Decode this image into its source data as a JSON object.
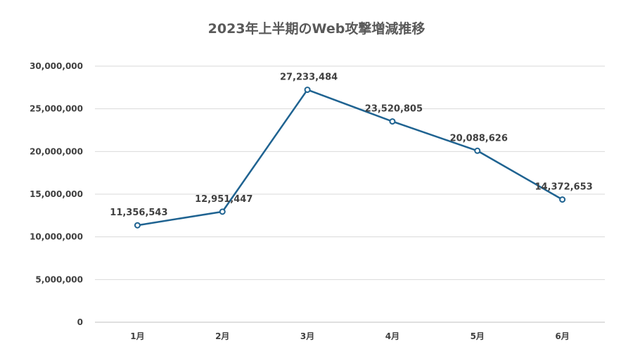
{
  "chart_data": {
    "type": "line",
    "title": "2023年上半期のWeb攻撃増減推移",
    "categories": [
      "1月",
      "2月",
      "3月",
      "4月",
      "5月",
      "6月"
    ],
    "series": [
      {
        "values": [
          11356543,
          12951447,
          27233484,
          23520805,
          20088626,
          14372653
        ],
        "labels": [
          "11,356,543",
          "12,951,447",
          "27,233,484",
          "23,520,805",
          "20,088,626",
          "14,372,653"
        ],
        "color": "#1f6391"
      }
    ],
    "ylim": [
      0,
      30000000
    ],
    "yticks": [
      "0",
      "5,000,000",
      "10,000,000",
      "15,000,000",
      "20,000,000",
      "25,000,000",
      "30,000,000"
    ],
    "ytick_values": [
      0,
      5000000,
      10000000,
      15000000,
      20000000,
      25000000,
      30000000
    ],
    "grid": true,
    "legend": "none"
  }
}
